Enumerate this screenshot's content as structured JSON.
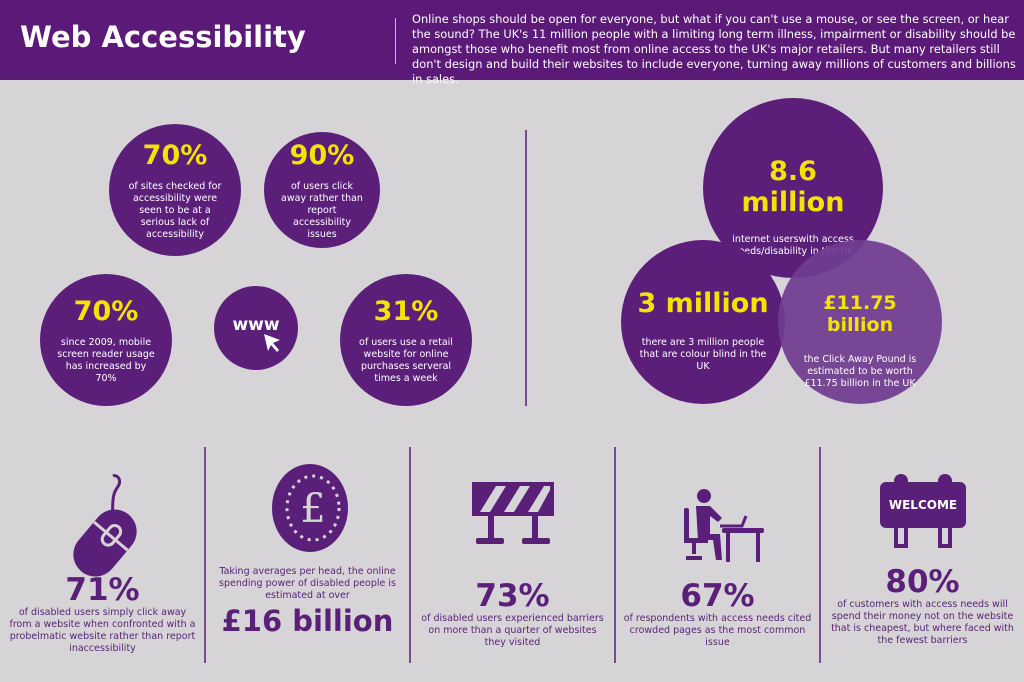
{
  "header": {
    "title": "Web Accessibility",
    "intro": "Online shops should be open for everyone, but what if you can't use a mouse, or see the screen, or hear the sound? The UK's 11 million people with a limiting long term illness, impairment or disability should be amongst those who benefit most from online access to the UK's major retailers. But many retailers still don't design and build their websites to include everyone, turning away millions of customers and billions in sales."
  },
  "circles": [
    {
      "value": "70%",
      "text": "of sites checked for accessibility were seen to be at a serious lack of accessibility"
    },
    {
      "value": "90%",
      "text": "of users click away rather than report accessibility issues"
    },
    {
      "value": "70%",
      "text": "since 2009, mobile screen reader usage has increased by 70%"
    },
    {
      "value": "www",
      "icon": "cursor-arrow-icon"
    },
    {
      "value": "31%",
      "text": "of users use a retail website for online purchases serveral times a week"
    }
  ],
  "venn": [
    {
      "value": "8.6 million",
      "text": "internet userswith access needs/disability in the UK"
    },
    {
      "value": "3 million",
      "text": "there are 3 million people that are colour blind in the UK"
    },
    {
      "value": "£11.75 billion",
      "text": "the Click Away Pound is estimated to be worth £11.75 billion in the UK"
    }
  ],
  "stats": [
    {
      "icon": "mouse-icon",
      "value": "71%",
      "text": "of disabled users simply click away from a website when confronted with a probelmatic website rather than report inaccessibility"
    },
    {
      "icon": "pound-coin-icon",
      "pre": "Taking averages per head, the online spending power of disabled people is estimated at over",
      "value": "£16 billion"
    },
    {
      "icon": "barrier-icon",
      "value": "73%",
      "text": "of disabled users experienced barriers on more than a quarter of websites they visited"
    },
    {
      "icon": "person-at-desk-icon",
      "value": "67%",
      "text": "of respondents with access needs cited crowded pages as the most common issue"
    },
    {
      "icon": "welcome-sign-icon",
      "value": "80%",
      "text": "of customers with access needs will spend their money not on the website that is cheapest, but where faced with the fewest barriers",
      "sign": "WELCOME"
    }
  ],
  "colors": {
    "purple": "#5c1a78",
    "yellow": "#f5e400",
    "background": "#d6d4d6"
  }
}
